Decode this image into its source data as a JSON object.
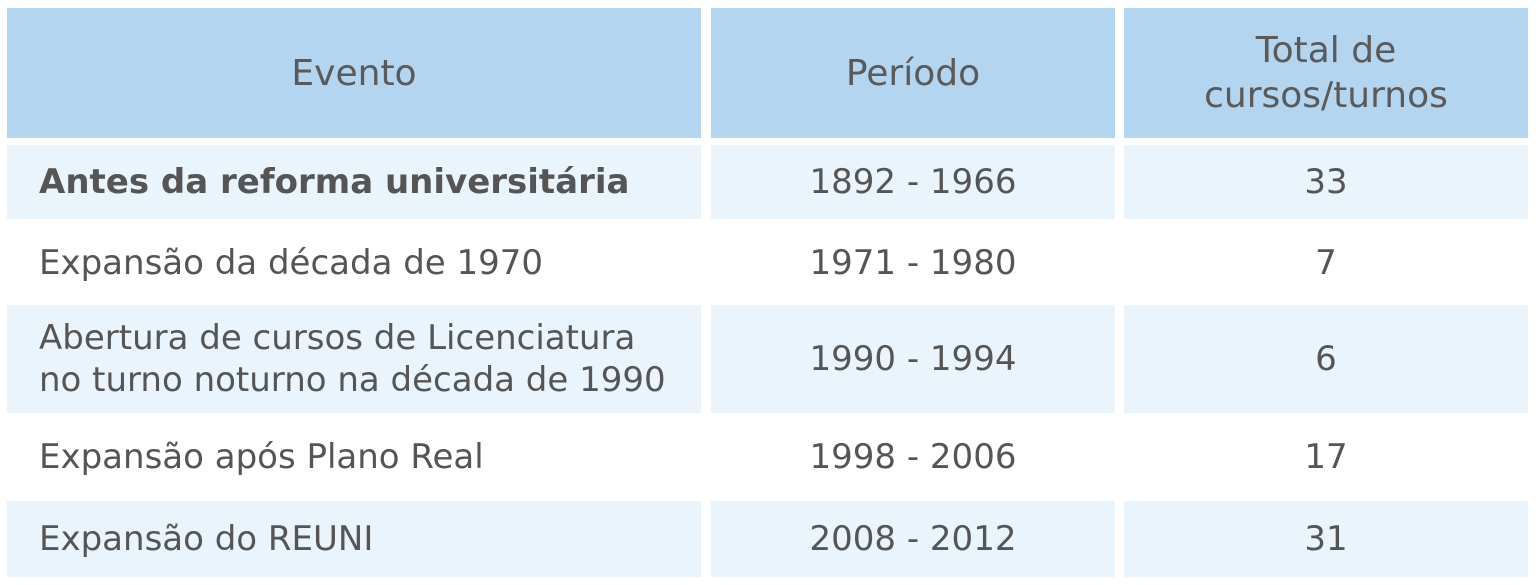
{
  "table": {
    "headers": {
      "evento": "Evento",
      "periodo": "Período",
      "total": "Total de\ncursos/turnos"
    },
    "rows": [
      {
        "evento": "Antes da reforma universitária",
        "periodo": "1892 - 1966",
        "total": "33"
      },
      {
        "evento": "Expansão da década de 1970",
        "periodo": "1971 - 1980",
        "total": "7"
      },
      {
        "evento": "Abertura de cursos de Licenciatura\nno turno noturno na década de 1990",
        "periodo": "1990 - 1994",
        "total": "6"
      },
      {
        "evento": "Expansão após Plano Real",
        "periodo": "1998 - 2006",
        "total": "17"
      },
      {
        "evento": "Expansão do REUNI",
        "periodo": "2008 - 2012",
        "total": "31"
      }
    ]
  }
}
